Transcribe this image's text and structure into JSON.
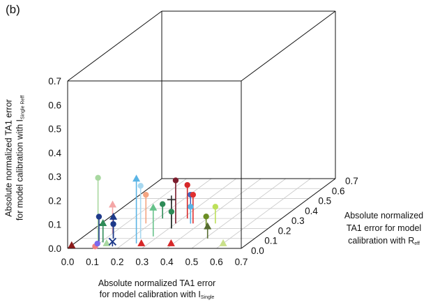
{
  "panel_label": "(b)",
  "chart_data": {
    "type": "scatter",
    "projection": "3d",
    "title": "",
    "xlabel": {
      "line1": "Absolute normalized TA1 error",
      "line2": "for model calibration with I",
      "sub": "Single"
    },
    "ylabel": {
      "line1": "Absolute normalized TA1 error",
      "line2": "for model calibration with I",
      "sub": "Single Reff"
    },
    "zlabel": {
      "line1": "Absolute normalized",
      "line2": "TA1 error for model",
      "line3": "calibration with R",
      "sub": "eff"
    },
    "x_ticks": [
      "0.0",
      "0.1",
      "0.2",
      "0.3",
      "0.4",
      "0.5",
      "0.6",
      "0.7"
    ],
    "y_ticks": [
      "0.0",
      "0.1",
      "0.2",
      "0.3",
      "0.4",
      "0.5",
      "0.6",
      "0.7"
    ],
    "z_ticks": [
      "0.0",
      "0.1",
      "0.2",
      "0.3",
      "0.4",
      "0.5",
      "0.6",
      "0.7"
    ],
    "xlim": [
      0,
      0.7
    ],
    "ylim": [
      0,
      0.7
    ],
    "zlim": [
      0,
      0.7
    ],
    "grid": "floor",
    "points": [
      {
        "x": 0.0,
        "y": 0.0,
        "z": 0.03,
        "marker": "triangle",
        "color": "#8b1a1a"
      },
      {
        "x": 0.1,
        "y": 0.0,
        "z": 0.02,
        "marker": "circle",
        "color": "#f08080"
      },
      {
        "x": 0.11,
        "y": 0.08,
        "z": 0.06,
        "marker": "triangle",
        "color": "#2e8b57"
      },
      {
        "x": 0.11,
        "y": 0.12,
        "z": 0.03,
        "marker": "circle",
        "color": "#1e3a8a"
      },
      {
        "x": 0.09,
        "y": 0.27,
        "z": 0.06,
        "marker": "circle",
        "color": "#a8d8a0"
      },
      {
        "x": 0.1,
        "y": 0.12,
        "z": 0.15,
        "marker": "triangle",
        "color": "#f4a6a6"
      },
      {
        "x": 0.13,
        "y": 0.06,
        "z": 0.1,
        "marker": "circle",
        "color": "#1e3a8a"
      },
      {
        "x": 0.13,
        "y": 0.09,
        "z": 0.1,
        "marker": "triangle",
        "color": "#1e3a8a"
      },
      {
        "x": 0.12,
        "y": 0.02,
        "z": 0.0,
        "marker": "circle",
        "color": "#7b68ee"
      },
      {
        "x": 0.13,
        "y": 0.0,
        "z": 0.05,
        "marker": "triangle",
        "color": "#a8d8a0"
      },
      {
        "x": 0.17,
        "y": 0.02,
        "z": 0.02,
        "marker": "x",
        "color": "#1e3a8a"
      },
      {
        "x": 0.18,
        "y": 0.12,
        "z": 0.25,
        "marker": "circle",
        "color": "#f4a582"
      },
      {
        "x": 0.22,
        "y": 0.06,
        "z": 0.3,
        "marker": "circle",
        "color": "#2e8b57"
      },
      {
        "x": 0.25,
        "y": 0.27,
        "z": 0.05,
        "marker": "triangle",
        "color": "#5ab4e5"
      },
      {
        "x": 0.24,
        "y": 0.22,
        "z": 0.1,
        "marker": "circle",
        "color": "#a8d8f0"
      },
      {
        "x": 0.27,
        "y": 0.0,
        "z": 0.05,
        "marker": "triangle",
        "color": "#d62728"
      },
      {
        "x": 0.28,
        "y": 0.12,
        "z": 0.12,
        "marker": "triangle",
        "color": "#66c28a"
      },
      {
        "x": 0.3,
        "y": 0.18,
        "z": 0.25,
        "marker": "circle",
        "color": "#7b1c2c"
      },
      {
        "x": 0.31,
        "y": 0.07,
        "z": 0.2,
        "marker": "circle",
        "color": "#2e8b57"
      },
      {
        "x": 0.31,
        "y": 0.12,
        "z": 0.2,
        "marker": "plus",
        "color": "#222222"
      },
      {
        "x": 0.32,
        "y": 0.14,
        "z": 0.3,
        "marker": "circle",
        "color": "#d62728"
      },
      {
        "x": 0.39,
        "y": 0.0,
        "z": 0.05,
        "marker": "triangle",
        "color": "#d62728"
      },
      {
        "x": 0.36,
        "y": 0.12,
        "z": 0.25,
        "marker": "circle",
        "color": "#4466bb"
      },
      {
        "x": 0.36,
        "y": 0.07,
        "z": 0.25,
        "marker": "circle",
        "color": "#5ab4e5"
      },
      {
        "x": 0.37,
        "y": 0.12,
        "z": 0.25,
        "marker": "circle",
        "color": "#e03030"
      },
      {
        "x": 0.46,
        "y": 0.07,
        "z": 0.25,
        "marker": "circle",
        "color": "#bde05a"
      },
      {
        "x": 0.45,
        "y": 0.05,
        "z": 0.2,
        "marker": "circle",
        "color": "#6b8e23"
      },
      {
        "x": 0.51,
        "y": 0.05,
        "z": 0.1,
        "marker": "triangle",
        "color": "#556b2f"
      },
      {
        "x": 0.6,
        "y": 0.0,
        "z": 0.05,
        "marker": "triangle",
        "color": "#c9e08a"
      }
    ]
  }
}
